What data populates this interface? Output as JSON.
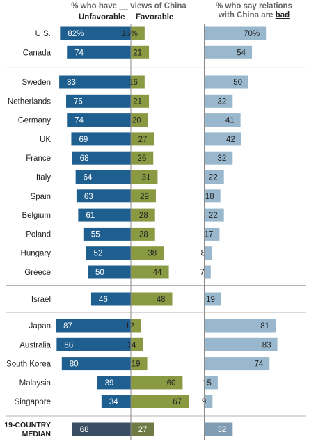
{
  "chart_data": {
    "type": "bar",
    "title": "% who have __ views of China",
    "right_title_line1": "% who say relations",
    "right_title_line2_prefix": "with China are",
    "right_title_emphasis": "bad",
    "series": [
      {
        "name": "Unfavorable",
        "color": "#1f5f8f"
      },
      {
        "name": "Favorable",
        "color": "#8a9a43"
      },
      {
        "name": "% who say relations with China are bad",
        "color": "#9ab8cd"
      }
    ],
    "groups": [
      {
        "rows": [
          {
            "country": "U.S.",
            "unfavorable": 82,
            "unfav_label": "82%",
            "favorable": 16,
            "fav_label": "16%",
            "bad": 70,
            "bad_label": "70%"
          },
          {
            "country": "Canada",
            "unfavorable": 74,
            "unfav_label": "74",
            "favorable": 21,
            "fav_label": "21",
            "bad": 54,
            "bad_label": "54"
          }
        ]
      },
      {
        "rows": [
          {
            "country": "Sweden",
            "unfavorable": 83,
            "unfav_label": "83",
            "favorable": 16,
            "fav_label": "16",
            "bad": 50,
            "bad_label": "50"
          },
          {
            "country": "Netherlands",
            "unfavorable": 75,
            "unfav_label": "75",
            "favorable": 21,
            "fav_label": "21",
            "bad": 32,
            "bad_label": "32"
          },
          {
            "country": "Germany",
            "unfavorable": 74,
            "unfav_label": "74",
            "favorable": 20,
            "fav_label": "20",
            "bad": 41,
            "bad_label": "41"
          },
          {
            "country": "UK",
            "unfavorable": 69,
            "unfav_label": "69",
            "favorable": 27,
            "fav_label": "27",
            "bad": 42,
            "bad_label": "42"
          },
          {
            "country": "France",
            "unfavorable": 68,
            "unfav_label": "68",
            "favorable": 26,
            "fav_label": "26",
            "bad": 32,
            "bad_label": "32"
          },
          {
            "country": "Italy",
            "unfavorable": 64,
            "unfav_label": "64",
            "favorable": 31,
            "fav_label": "31",
            "bad": 22,
            "bad_label": "22"
          },
          {
            "country": "Spain",
            "unfavorable": 63,
            "unfav_label": "63",
            "favorable": 29,
            "fav_label": "29",
            "bad": 18,
            "bad_label": "18"
          },
          {
            "country": "Belgium",
            "unfavorable": 61,
            "unfav_label": "61",
            "favorable": 28,
            "fav_label": "28",
            "bad": 22,
            "bad_label": "22"
          },
          {
            "country": "Poland",
            "unfavorable": 55,
            "unfav_label": "55",
            "favorable": 28,
            "fav_label": "28",
            "bad": 17,
            "bad_label": "17"
          },
          {
            "country": "Hungary",
            "unfavorable": 52,
            "unfav_label": "52",
            "favorable": 38,
            "fav_label": "38",
            "bad": 8,
            "bad_label": "8"
          },
          {
            "country": "Greece",
            "unfavorable": 50,
            "unfav_label": "50",
            "favorable": 44,
            "fav_label": "44",
            "bad": 7,
            "bad_label": "7"
          }
        ]
      },
      {
        "rows": [
          {
            "country": "Israel",
            "unfavorable": 46,
            "unfav_label": "46",
            "favorable": 48,
            "fav_label": "48",
            "bad": 19,
            "bad_label": "19"
          }
        ]
      },
      {
        "rows": [
          {
            "country": "Japan",
            "unfavorable": 87,
            "unfav_label": "87",
            "favorable": 12,
            "fav_label": "12",
            "bad": 81,
            "bad_label": "81"
          },
          {
            "country": "Australia",
            "unfavorable": 86,
            "unfav_label": "86",
            "favorable": 14,
            "fav_label": "14",
            "bad": 83,
            "bad_label": "83"
          },
          {
            "country": "South Korea",
            "unfavorable": 80,
            "unfav_label": "80",
            "favorable": 19,
            "fav_label": "19",
            "bad": 74,
            "bad_label": "74"
          },
          {
            "country": "Malaysia",
            "unfavorable": 39,
            "unfav_label": "39",
            "favorable": 60,
            "fav_label": "60",
            "bad": 15,
            "bad_label": "15"
          },
          {
            "country": "Singapore",
            "unfavorable": 34,
            "unfav_label": "34",
            "favorable": 67,
            "fav_label": "67",
            "bad": 9,
            "bad_label": "9"
          }
        ]
      }
    ],
    "median": {
      "line1": "19-COUNTRY",
      "line2": "MEDIAN",
      "unfavorable": 68,
      "unfav_label": "68",
      "favorable": 27,
      "fav_label": "27",
      "bad": 32,
      "bad_label": "32",
      "colors": {
        "unfavorable": "#3a4e63",
        "favorable": "#6f7a45",
        "bad": "#7f9cb4"
      }
    }
  }
}
